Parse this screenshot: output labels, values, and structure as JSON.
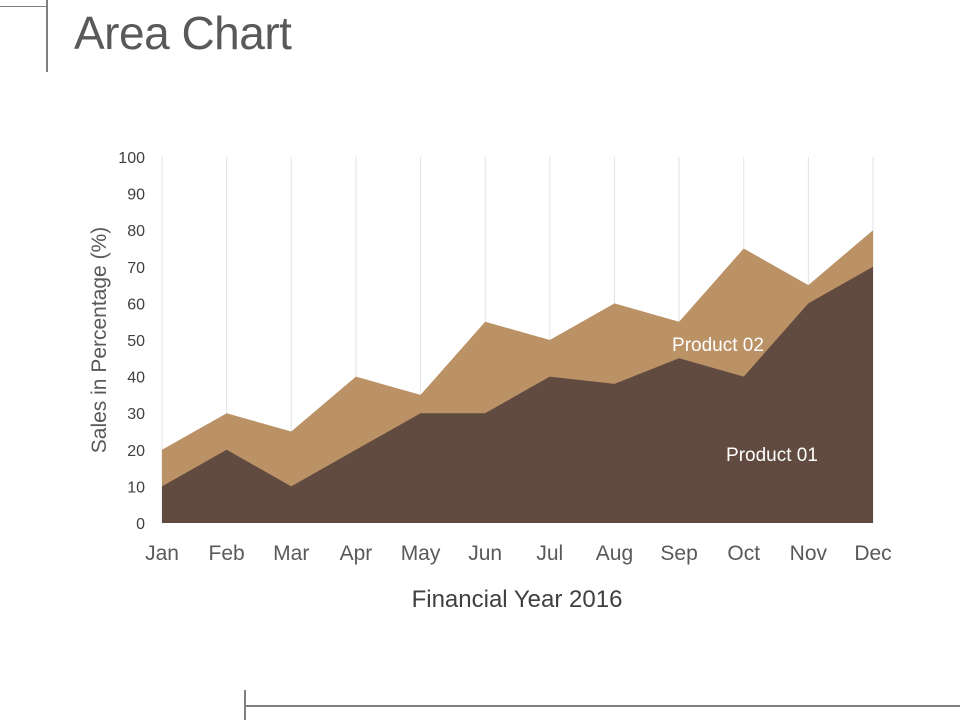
{
  "slide": {
    "title": "Area Chart"
  },
  "chart_data": {
    "type": "area",
    "title": "",
    "xlabel": "Financial Year 2016",
    "ylabel": "Sales in Percentage (%)",
    "categories": [
      "Jan",
      "Feb",
      "Mar",
      "Apr",
      "May",
      "Jun",
      "Jul",
      "Aug",
      "Sep",
      "Oct",
      "Nov",
      "Dec"
    ],
    "ylim": [
      0,
      100
    ],
    "yticks": [
      0,
      10,
      20,
      30,
      40,
      50,
      60,
      70,
      80,
      90,
      100
    ],
    "grid": "vertical",
    "legend": "none",
    "series": [
      {
        "name": "Product 02",
        "color": "#bb9166",
        "values": [
          20,
          30,
          25,
          40,
          35,
          55,
          50,
          60,
          55,
          75,
          65,
          80
        ]
      },
      {
        "name": "Product 01",
        "color": "#614a3f",
        "values": [
          10,
          20,
          10,
          20,
          30,
          30,
          40,
          38,
          45,
          40,
          60,
          70
        ]
      }
    ]
  }
}
